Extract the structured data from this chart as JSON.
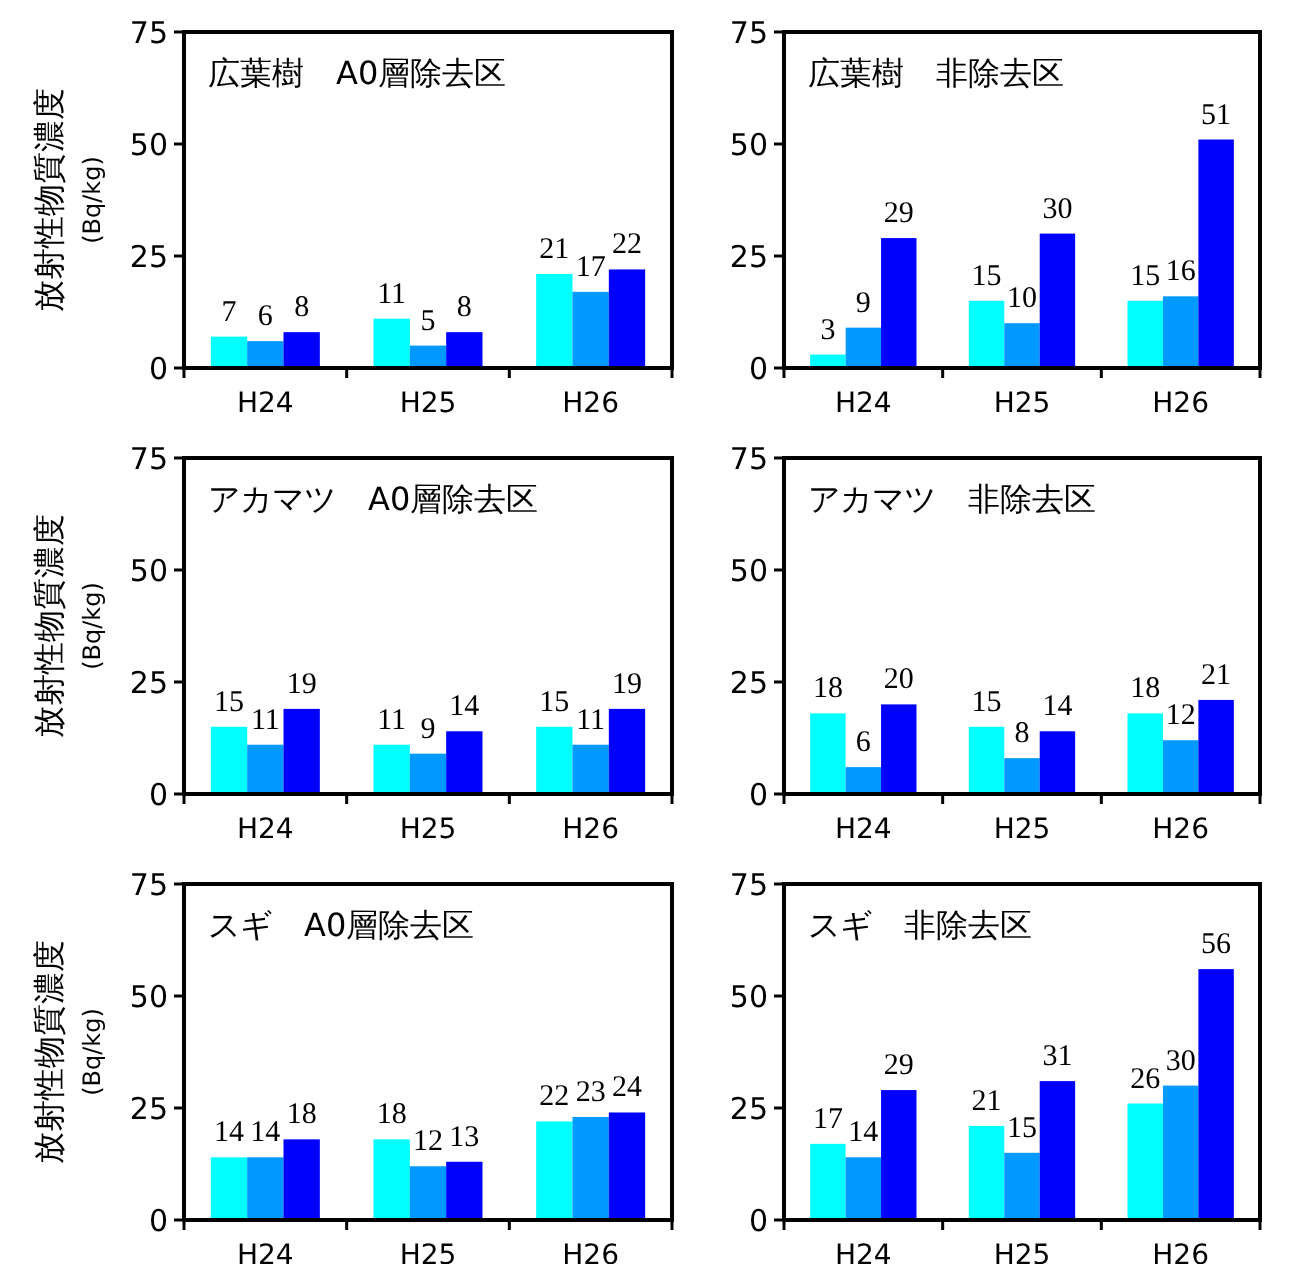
{
  "chart_data": [
    {
      "type": "bar",
      "title": "広葉樹　A0層除去区",
      "ylabel": "放射性物質濃度\n(Bq/kg)",
      "categories": [
        "H24",
        "H25",
        "H26"
      ],
      "ylim": [
        0,
        75
      ],
      "yticks": [
        0,
        25,
        50,
        75
      ],
      "data_labels": true,
      "series": [
        {
          "color": "#00ffff",
          "values": [
            7,
            11,
            21
          ]
        },
        {
          "color": "#0099ff",
          "values": [
            6,
            5,
            17
          ]
        },
        {
          "color": "#0000ff",
          "values": [
            8,
            8,
            22
          ]
        }
      ]
    },
    {
      "type": "bar",
      "title": "広葉樹　非除去区",
      "categories": [
        "H24",
        "H25",
        "H26"
      ],
      "ylim": [
        0,
        75
      ],
      "yticks": [
        0,
        25,
        50,
        75
      ],
      "data_labels": true,
      "series": [
        {
          "color": "#00ffff",
          "values": [
            3,
            15,
            15
          ]
        },
        {
          "color": "#0099ff",
          "values": [
            9,
            10,
            16
          ]
        },
        {
          "color": "#0000ff",
          "values": [
            29,
            30,
            51
          ]
        }
      ]
    },
    {
      "type": "bar",
      "title": "アカマツ　A0層除去区",
      "ylabel": "放射性物質濃度\n(Bq/kg)",
      "categories": [
        "H24",
        "H25",
        "H26"
      ],
      "ylim": [
        0,
        75
      ],
      "yticks": [
        0,
        25,
        50,
        75
      ],
      "data_labels": true,
      "series": [
        {
          "color": "#00ffff",
          "values": [
            15,
            11,
            15
          ]
        },
        {
          "color": "#0099ff",
          "values": [
            11,
            9,
            11
          ]
        },
        {
          "color": "#0000ff",
          "values": [
            19,
            14,
            19
          ]
        }
      ]
    },
    {
      "type": "bar",
      "title": "アカマツ　非除去区",
      "categories": [
        "H24",
        "H25",
        "H26"
      ],
      "ylim": [
        0,
        75
      ],
      "yticks": [
        0,
        25,
        50,
        75
      ],
      "data_labels": true,
      "series": [
        {
          "color": "#00ffff",
          "values": [
            18,
            15,
            18
          ]
        },
        {
          "color": "#0099ff",
          "values": [
            6,
            8,
            12
          ]
        },
        {
          "color": "#0000ff",
          "values": [
            20,
            14,
            21
          ]
        }
      ]
    },
    {
      "type": "bar",
      "title": "スギ　A0層除去区",
      "ylabel": "放射性物質濃度\n(Bq/kg)",
      "categories": [
        "H24",
        "H25",
        "H26"
      ],
      "ylim": [
        0,
        75
      ],
      "yticks": [
        0,
        25,
        50,
        75
      ],
      "data_labels": true,
      "series": [
        {
          "color": "#00ffff",
          "values": [
            14,
            18,
            22
          ]
        },
        {
          "color": "#0099ff",
          "values": [
            14,
            12,
            23
          ]
        },
        {
          "color": "#0000ff",
          "values": [
            18,
            13,
            24
          ]
        }
      ]
    },
    {
      "type": "bar",
      "title": "スギ　非除去区",
      "categories": [
        "H24",
        "H25",
        "H26"
      ],
      "ylim": [
        0,
        75
      ],
      "yticks": [
        0,
        25,
        50,
        75
      ],
      "data_labels": true,
      "series": [
        {
          "color": "#00ffff",
          "values": [
            17,
            21,
            26
          ]
        },
        {
          "color": "#0099ff",
          "values": [
            14,
            15,
            30
          ]
        },
        {
          "color": "#0000ff",
          "values": [
            29,
            31,
            56
          ]
        }
      ]
    }
  ]
}
